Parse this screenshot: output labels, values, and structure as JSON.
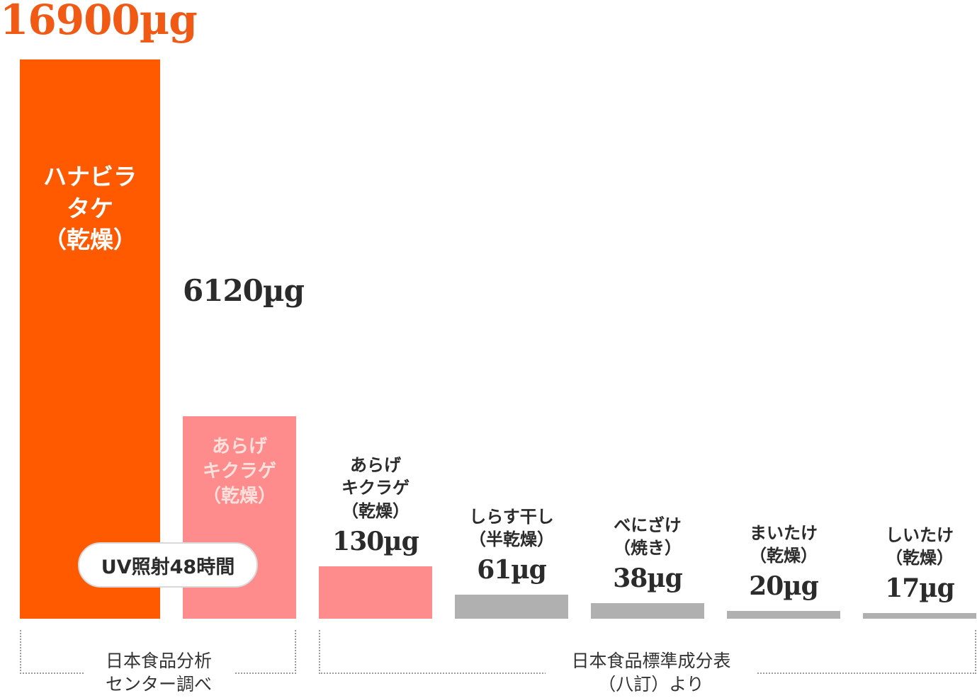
{
  "chart_data": {
    "type": "bar",
    "unit": "µg",
    "categories": [
      "ハナビラ\nタケ\n（乾燥）",
      "あらげ\nキクラゲ\n（乾燥）",
      "あらげ\nキクラゲ\n（乾燥）",
      "しらす干し\n（半乾燥）",
      "べにざけ\n（焼き）",
      "まいたけ\n（乾燥）",
      "しいたけ\n（乾燥）"
    ],
    "values": [
      16900,
      6120,
      130,
      61,
      38,
      20,
      17
    ],
    "value_labels": [
      "16900µg",
      "6120µg",
      "130µg",
      "61µg",
      "38µg",
      "20µg",
      "17µg"
    ],
    "bar_colors": [
      "#ff5a00",
      "#ff8c8c",
      "#ff8c8c",
      "#b0b0b0",
      "#b0b0b0",
      "#b0b0b0",
      "#b0b0b0"
    ],
    "value_colors": [
      "#f05a14",
      "#2b2b2b",
      "#2b2b2b",
      "#2b2b2b",
      "#2b2b2b",
      "#2b2b2b",
      "#2b2b2b"
    ],
    "badge": "UV照射48時間",
    "groups": [
      {
        "source": "日本食品分析\nセンター調べ",
        "members": [
          0,
          1
        ]
      },
      {
        "source": "日本食品標準成分表\n（八訂）より",
        "members": [
          2,
          3,
          4,
          5,
          6
        ]
      }
    ]
  }
}
